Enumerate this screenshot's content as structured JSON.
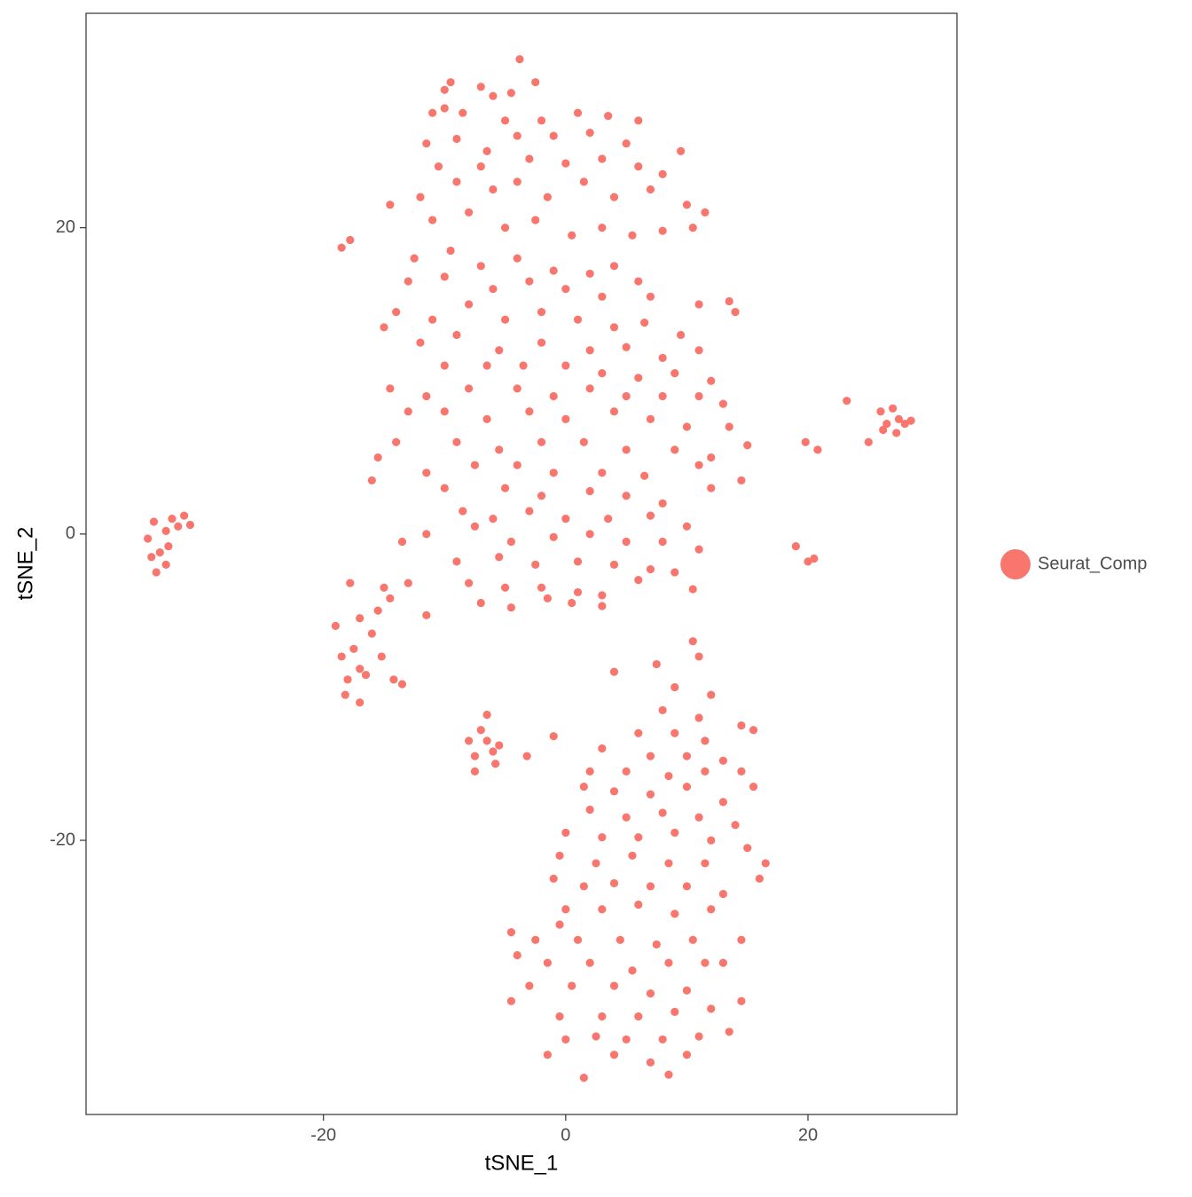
{
  "chart_data": {
    "type": "scatter",
    "xlabel": "tSNE_1",
    "ylabel": "tSNE_2",
    "xlim": [
      -39.6,
      32.3
    ],
    "ylim": [
      -37.9,
      34.0
    ],
    "xticks": [
      -20,
      0,
      20
    ],
    "yticks": [
      -20,
      0,
      20
    ],
    "legend": "right",
    "x": [
      -34.5,
      -34,
      -33.5,
      -33,
      -32.5,
      -32,
      -31.5,
      -31,
      -33.8,
      -33,
      -34.2,
      -32.8,
      -19,
      -18.5,
      -18,
      -17.5,
      -17,
      -18.2,
      -17.8,
      -17,
      -16,
      -15.5,
      -15,
      -14.5,
      -15.2,
      -14.2,
      -13.5,
      -16.5,
      -17,
      -13,
      -8,
      -7.5,
      -7,
      -6.5,
      -6,
      -5.5,
      -6.5,
      -7.5,
      -5.8,
      -3.2,
      26,
      26.5,
      27,
      27.5,
      28,
      28.5,
      26.2,
      27.3,
      -18.5,
      -17.8,
      20,
      20.5,
      19,
      23.2,
      25,
      19.8,
      20.8,
      14,
      -10,
      -9.5,
      -7,
      -6,
      -4.5,
      -3.8,
      -2.5,
      -11,
      -10,
      -8.5,
      -5,
      -2,
      1,
      3.5,
      6,
      -11.5,
      -9,
      -6.5,
      -4,
      -1,
      2,
      5,
      9.5,
      -10.5,
      -7,
      -3,
      0,
      3,
      6,
      8,
      -12,
      -9,
      -6,
      -4,
      -1.5,
      1.5,
      4,
      7,
      10,
      11.5,
      -14.5,
      -11,
      -8,
      -5,
      -2.5,
      0.5,
      3,
      5.5,
      8,
      10.5,
      -12.5,
      -9.5,
      -7,
      -4,
      -1,
      2,
      4,
      6,
      -13,
      -10,
      -6,
      -3,
      0,
      3,
      7,
      -14,
      -11,
      -8,
      -5,
      -2,
      1,
      4,
      6.5,
      9.5,
      -15,
      -12,
      -9,
      -5.5,
      -2,
      2,
      5,
      8,
      11,
      -10,
      -6.5,
      -3.5,
      0,
      3,
      6,
      9,
      12,
      -14.5,
      -11.5,
      -8,
      -4,
      -1,
      2,
      5,
      8,
      11,
      13,
      -13,
      -10,
      -6.5,
      -3,
      0,
      4,
      7,
      10,
      13.5,
      -14,
      -9,
      -5.5,
      -2,
      1.5,
      5,
      9,
      12,
      15,
      -15.5,
      -11.5,
      -7.5,
      -4,
      -1,
      3,
      6.5,
      11,
      14.5,
      -16,
      -10,
      -5,
      -2,
      2,
      5,
      8,
      12,
      -8.5,
      -6,
      -3,
      0,
      3.5,
      7,
      10,
      -11.5,
      -7.5,
      -4.5,
      -1,
      2,
      5,
      8,
      11,
      -13.5,
      -9,
      -5.5,
      -2.5,
      1,
      4,
      7,
      9,
      -8,
      -5,
      -2,
      1,
      3,
      6,
      10.5,
      -7,
      -4.5,
      -1.5,
      0.5,
      3,
      -11.5,
      11,
      13.5,
      10.5,
      11,
      7.5,
      4,
      9,
      12,
      8,
      11,
      14.5,
      15.5,
      6,
      9,
      11.5,
      -1,
      3,
      7,
      10,
      13,
      2,
      5,
      8.5,
      11.5,
      14.5,
      1.5,
      4,
      7,
      10,
      13,
      15.5,
      2,
      5,
      8,
      11,
      14,
      0,
      3,
      6,
      9,
      12,
      15,
      -0.5,
      2.5,
      5.5,
      8.5,
      11.5,
      16.5,
      -1,
      1.5,
      4,
      7,
      10,
      13,
      16,
      0,
      3,
      6,
      9,
      12,
      -0.5,
      -4.5,
      -2.5,
      1,
      4.5,
      7.5,
      10.5,
      14.5,
      -4,
      -1.5,
      2,
      5.5,
      8.5,
      11.5,
      13,
      -3,
      0.5,
      4,
      7,
      10,
      -4.5,
      -0.5,
      3,
      6,
      9,
      12,
      14.5,
      0,
      2.5,
      5,
      8,
      11,
      13.5,
      -1.5,
      4,
      7,
      10,
      8.5,
      1.5
    ],
    "series": [
      {
        "name": "Seurat_Comp",
        "color": "#F8766D",
        "values": [
          -0.3,
          0.8,
          -1.2,
          0.2,
          1,
          0.5,
          1.2,
          0.6,
          -2.5,
          -2,
          -1.5,
          -0.8,
          -6,
          -8,
          -9.5,
          -7.5,
          -8.8,
          -10.5,
          -3.2,
          -5.5,
          -6.5,
          -5,
          -3.5,
          -4.2,
          -8,
          -9.5,
          -9.8,
          -9.2,
          -11,
          -3.2,
          -13.5,
          -14.5,
          -12.8,
          -13.5,
          -14.2,
          -13.8,
          -11.8,
          -15.5,
          -15,
          -14.5,
          8,
          7.2,
          8.2,
          7.5,
          7.2,
          7.4,
          6.8,
          6.6,
          18.7,
          19.2,
          -1.8,
          -1.6,
          -0.8,
          8.7,
          6,
          6,
          5.5,
          14.5,
          29,
          29.5,
          29.2,
          28.6,
          28.8,
          31,
          29.5,
          27.5,
          27.8,
          27.5,
          27,
          27,
          27.5,
          27.3,
          27,
          25.5,
          25.8,
          25,
          26,
          26,
          26.2,
          25.5,
          25,
          24,
          24,
          24.5,
          24.2,
          24.5,
          24,
          23.5,
          22,
          23,
          22.5,
          23,
          22,
          23,
          22,
          22.5,
          21.5,
          21,
          21.5,
          20.5,
          21,
          20,
          20.5,
          19.5,
          20,
          19.5,
          19.8,
          20,
          18,
          18.5,
          17.5,
          18,
          17.2,
          17,
          17.5,
          16.5,
          16.5,
          16.8,
          16,
          16.5,
          16,
          15.5,
          15.5,
          14.5,
          14,
          15,
          14,
          14.5,
          14,
          13.5,
          13.8,
          13,
          13.5,
          12.5,
          13,
          12,
          12.5,
          12,
          12.2,
          11.5,
          12,
          11,
          11,
          11,
          11,
          10.5,
          10.2,
          10.5,
          10,
          9.5,
          9,
          9.5,
          9.5,
          9,
          9.5,
          9,
          9,
          9,
          8.5,
          8,
          8,
          7.5,
          8,
          7.5,
          8,
          7.5,
          7,
          7,
          6,
          6,
          5.5,
          6,
          6,
          5.5,
          5.5,
          5,
          5.8,
          5,
          4,
          4.5,
          4.5,
          4,
          4,
          3.8,
          4.5,
          3.5,
          3.5,
          3,
          3,
          2.5,
          2.8,
          2.5,
          2,
          3,
          1.5,
          1,
          1.5,
          1,
          1,
          1.2,
          0.5,
          0,
          0.5,
          -0.5,
          -0.2,
          0,
          -0.5,
          -0.5,
          -1,
          -0.5,
          -1.8,
          -1.5,
          -2,
          -1.8,
          -2,
          -2.3,
          -2.5,
          -3.2,
          -3.5,
          -3.5,
          -3.8,
          -4,
          -3,
          -3.6,
          -4.5,
          -4.8,
          -4.2,
          -4.5,
          -4.7,
          -5.3,
          15,
          15.2,
          -7,
          -8,
          -8.5,
          -9,
          -10,
          -10.5,
          -11.5,
          -12,
          -12.5,
          -12.8,
          -13,
          -13,
          -13.5,
          -13.2,
          -14,
          -14.5,
          -14.5,
          -14.8,
          -15.5,
          -15.5,
          -15.8,
          -15.5,
          -15.5,
          -16.5,
          -16.8,
          -17,
          -16.5,
          -17.5,
          -16.5,
          -18,
          -18.5,
          -18.2,
          -18.5,
          -19,
          -19.5,
          -19.8,
          -19.8,
          -19.5,
          -20,
          -20.5,
          -21,
          -21.5,
          -21,
          -21.5,
          -21.5,
          -21.5,
          -22.5,
          -23,
          -22.8,
          -23,
          -23,
          -23.5,
          -22.5,
          -24.5,
          -24.5,
          -24.2,
          -24.8,
          -24.5,
          -25.5,
          -26,
          -26.5,
          -26.5,
          -26.5,
          -26.8,
          -26.5,
          -26.5,
          -27.5,
          -28,
          -28,
          -28.5,
          -28,
          -28,
          -28,
          -29.5,
          -29.5,
          -29.5,
          -30,
          -29.8,
          -30.5,
          -31.5,
          -31.5,
          -31.5,
          -31.2,
          -31,
          -30.5,
          -33,
          -32.8,
          -33,
          -33,
          -32.8,
          -32.5,
          -34,
          -34,
          -34.5,
          -34,
          -35.3,
          -35.5
        ]
      }
    ]
  }
}
